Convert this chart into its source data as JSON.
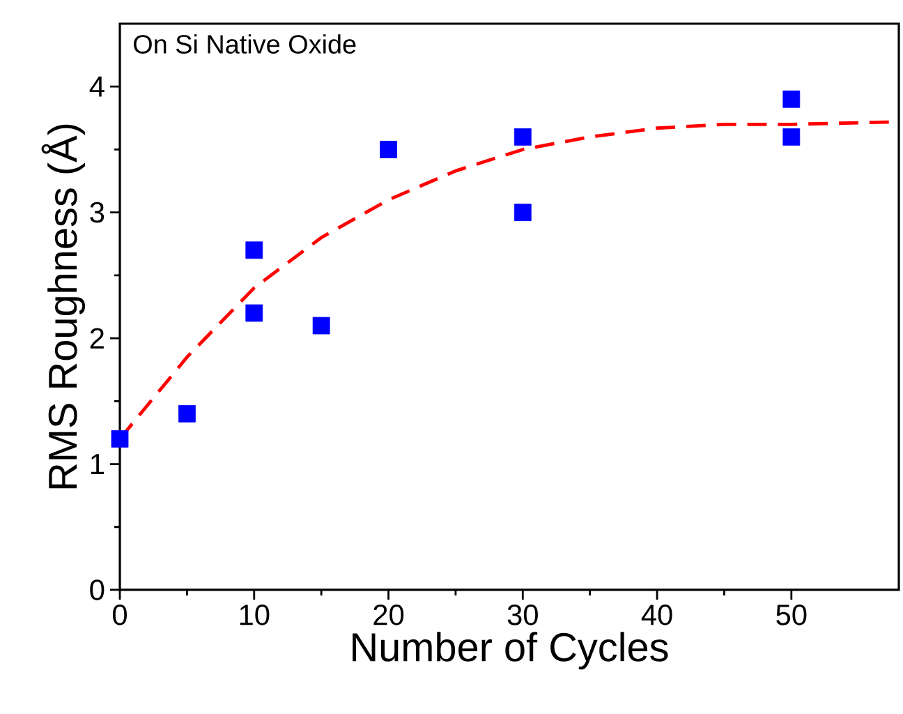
{
  "chart_data": {
    "type": "scatter",
    "xlabel": "Number of Cycles",
    "ylabel": "RMS Roughness (Å)",
    "annotations": [
      "On Si Native Oxide"
    ],
    "xlim": [
      0,
      58
    ],
    "ylim": [
      0,
      4.5
    ],
    "xticks": [
      0,
      10,
      20,
      30,
      40,
      50
    ],
    "yticks": [
      0,
      1,
      2,
      3,
      4
    ],
    "series": [
      {
        "marker": "square",
        "color": "#0000ff",
        "x": [
          0,
          5,
          10,
          10,
          15,
          20,
          30,
          30,
          50,
          50
        ],
        "values": [
          1.2,
          1.4,
          2.7,
          2.2,
          2.1,
          3.5,
          3.6,
          3.0,
          3.9,
          3.6
        ]
      },
      {
        "type": "line",
        "color": "#ff0000",
        "line_style": "dashed",
        "x": [
          0,
          5,
          10,
          15,
          20,
          25,
          30,
          35,
          40,
          45,
          50,
          58
        ],
        "values": [
          1.2,
          1.85,
          2.4,
          2.8,
          3.1,
          3.33,
          3.5,
          3.6,
          3.67,
          3.7,
          3.7,
          3.72
        ]
      }
    ]
  }
}
